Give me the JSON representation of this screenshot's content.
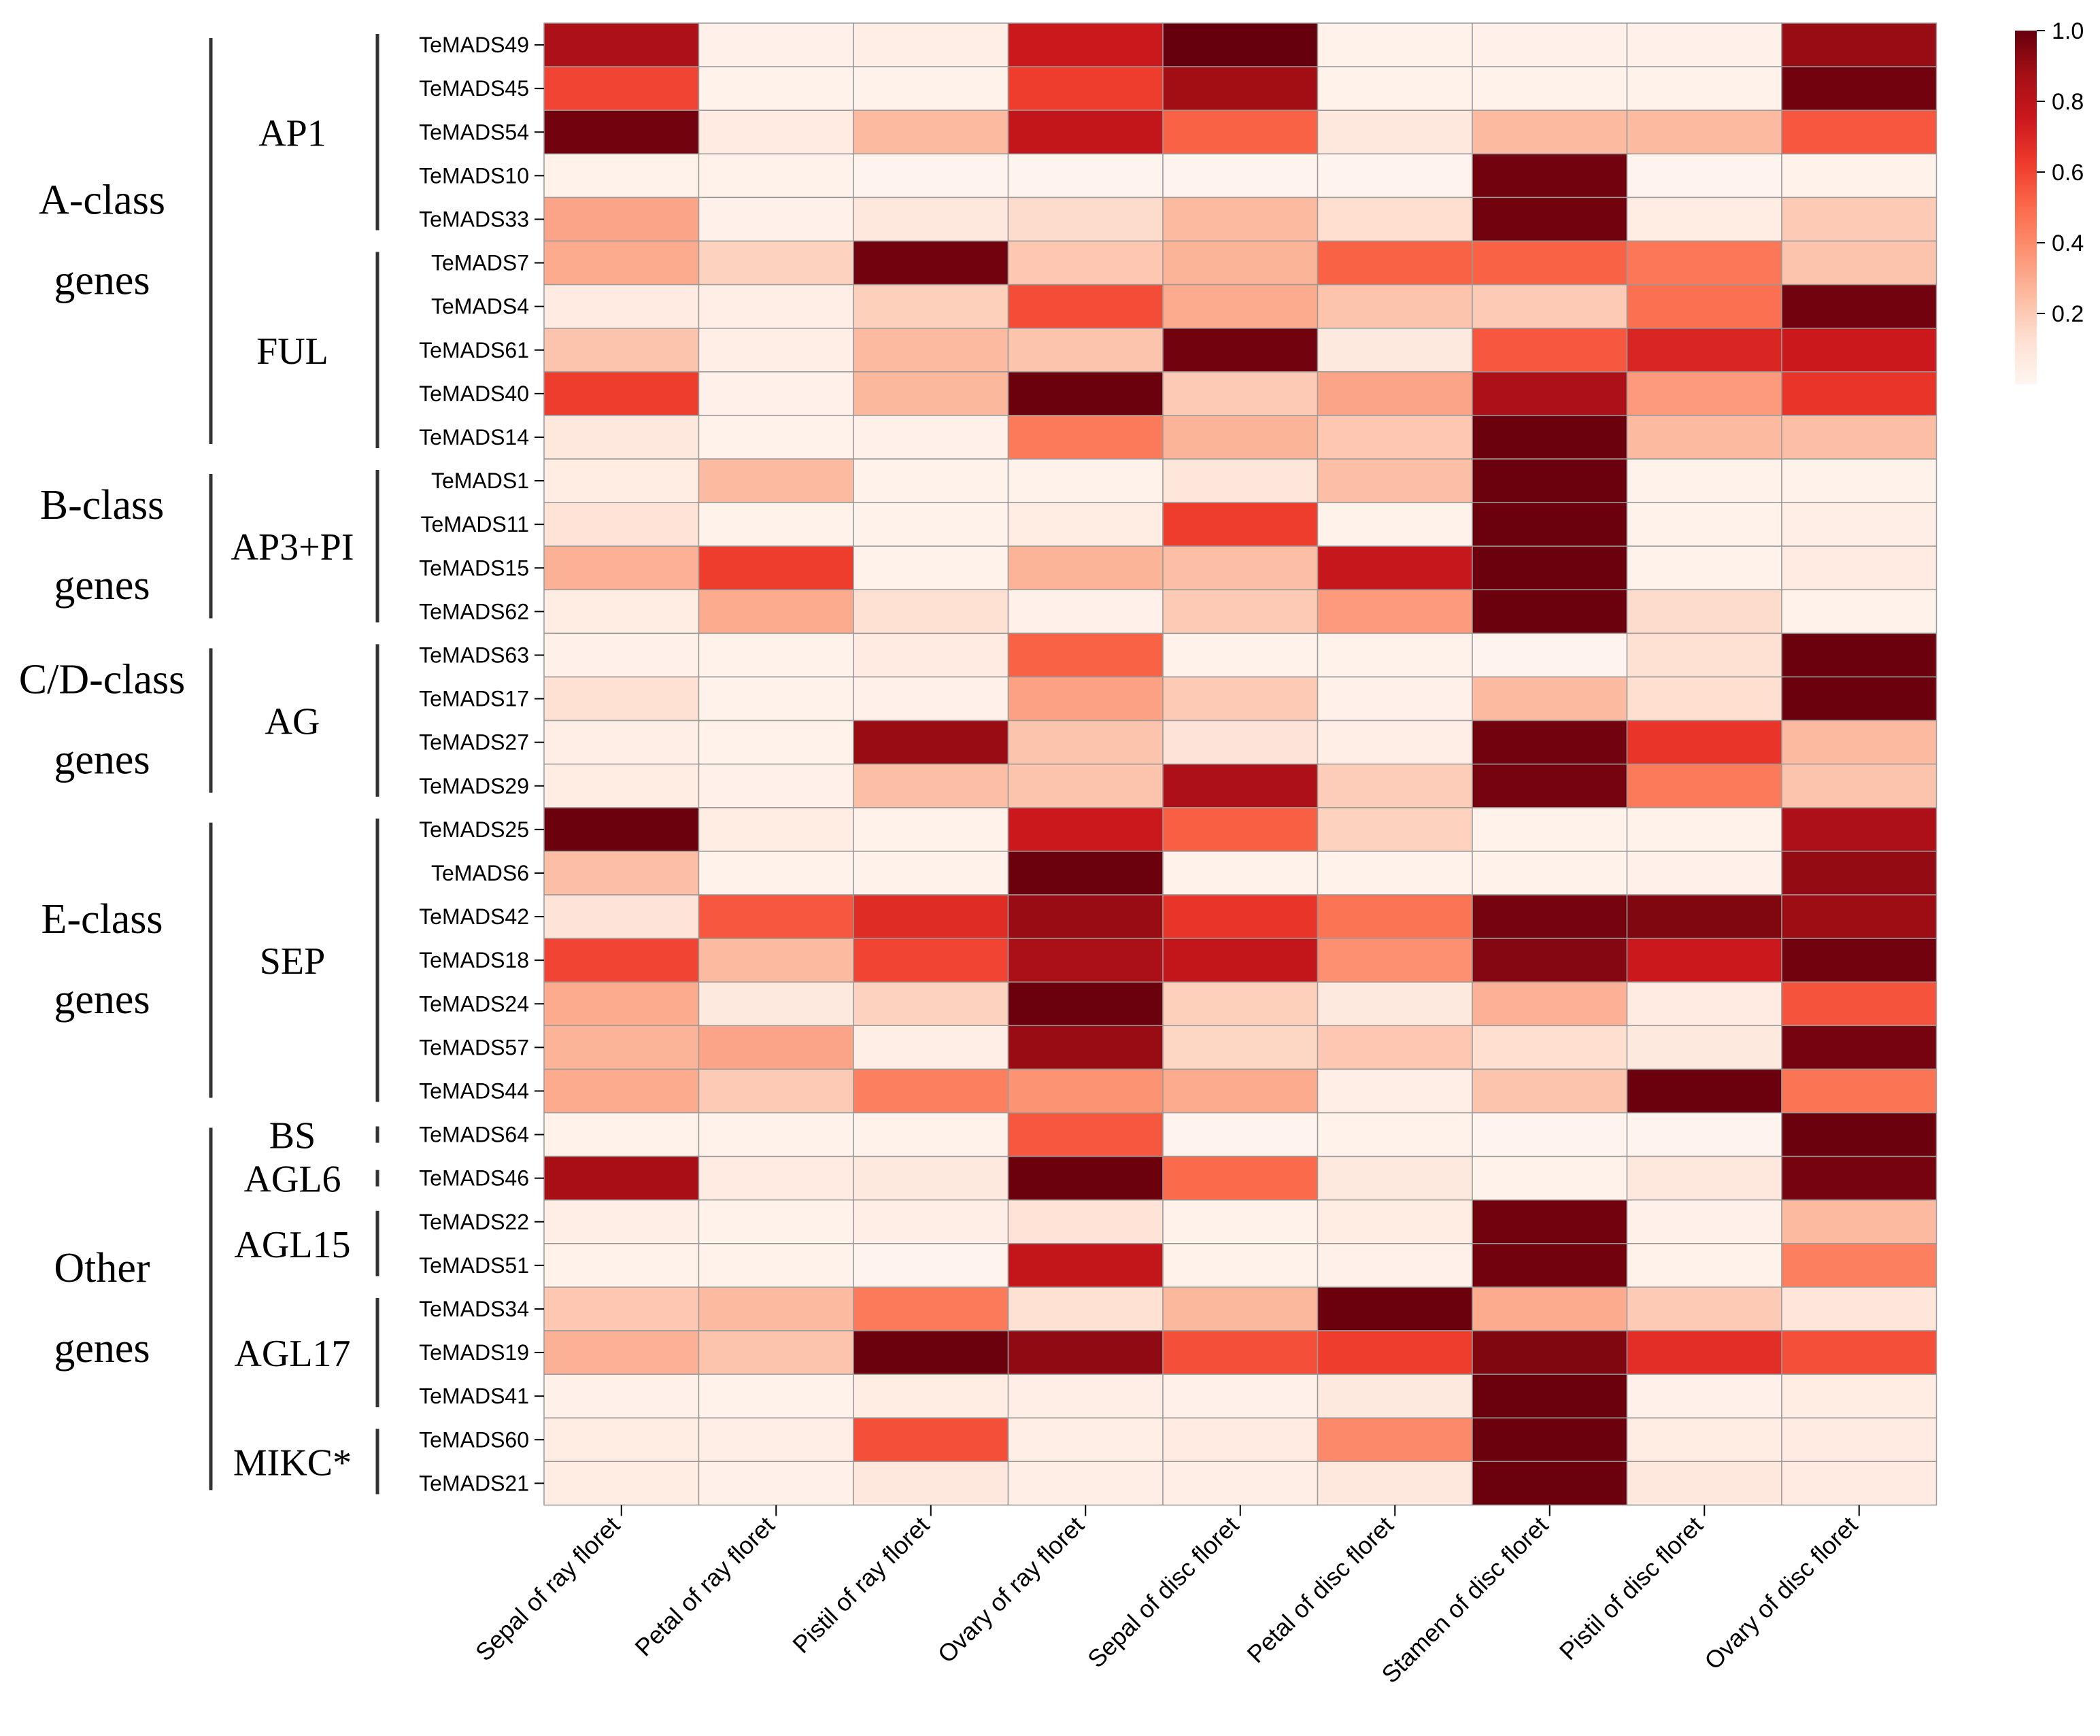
{
  "chart_data": {
    "type": "heatmap",
    "title": "",
    "colormap": "Reds",
    "colors": {
      "low": "#fff5f0",
      "high": "#67000d",
      "grid": "#999999"
    },
    "columns": [
      "Sepal of ray floret",
      "Petal of ray floret",
      "Pistil of ray floret",
      "Ovary of ray floret",
      "Sepal of disc floret",
      "Petal of disc floret",
      "Stamen of disc floret",
      "Pistil of disc floret",
      "Ovary of disc floret"
    ],
    "rows": [
      "TeMADS49",
      "TeMADS45",
      "TeMADS54",
      "TeMADS10",
      "TeMADS33",
      "TeMADS7",
      "TeMADS4",
      "TeMADS61",
      "TeMADS40",
      "TeMADS14",
      "TeMADS1",
      "TeMADS11",
      "TeMADS15",
      "TeMADS62",
      "TeMADS63",
      "TeMADS17",
      "TeMADS27",
      "TeMADS29",
      "TeMADS25",
      "TeMADS6",
      "TeMADS42",
      "TeMADS18",
      "TeMADS24",
      "TeMADS57",
      "TeMADS44",
      "TeMADS64",
      "TeMADS46",
      "TeMADS22",
      "TeMADS51",
      "TeMADS34",
      "TeMADS19",
      "TeMADS41",
      "TeMADS60",
      "TeMADS21"
    ],
    "values": [
      [
        0.85,
        0.03,
        0.04,
        0.75,
        1.0,
        0.02,
        0.03,
        0.03,
        0.9
      ],
      [
        0.6,
        0.02,
        0.02,
        0.62,
        0.88,
        0.02,
        0.02,
        0.02,
        0.98
      ],
      [
        0.98,
        0.06,
        0.25,
        0.78,
        0.52,
        0.08,
        0.25,
        0.25,
        0.55
      ],
      [
        0.02,
        0.02,
        0.01,
        0.01,
        0.01,
        0.01,
        0.98,
        0.01,
        0.02
      ],
      [
        0.32,
        0.03,
        0.08,
        0.14,
        0.25,
        0.13,
        0.98,
        0.05,
        0.2
      ],
      [
        0.3,
        0.17,
        0.98,
        0.21,
        0.27,
        0.52,
        0.52,
        0.46,
        0.22
      ],
      [
        0.06,
        0.04,
        0.18,
        0.58,
        0.3,
        0.22,
        0.2,
        0.48,
        0.98
      ],
      [
        0.22,
        0.04,
        0.25,
        0.22,
        0.98,
        0.07,
        0.55,
        0.7,
        0.75
      ],
      [
        0.62,
        0.03,
        0.26,
        0.99,
        0.2,
        0.32,
        0.85,
        0.35,
        0.65
      ],
      [
        0.08,
        0.02,
        0.03,
        0.45,
        0.27,
        0.21,
        0.99,
        0.25,
        0.24
      ],
      [
        0.05,
        0.25,
        0.02,
        0.02,
        0.09,
        0.24,
        0.99,
        0.02,
        0.02
      ],
      [
        0.11,
        0.02,
        0.02,
        0.05,
        0.62,
        0.02,
        0.99,
        0.02,
        0.04
      ],
      [
        0.28,
        0.62,
        0.02,
        0.27,
        0.24,
        0.77,
        0.99,
        0.02,
        0.06
      ],
      [
        0.05,
        0.3,
        0.12,
        0.03,
        0.2,
        0.35,
        0.99,
        0.14,
        0.02
      ],
      [
        0.03,
        0.02,
        0.06,
        0.52,
        0.02,
        0.02,
        0.01,
        0.12,
        0.99
      ],
      [
        0.12,
        0.02,
        0.03,
        0.33,
        0.2,
        0.03,
        0.25,
        0.13,
        0.99
      ],
      [
        0.04,
        0.02,
        0.9,
        0.22,
        0.1,
        0.04,
        0.98,
        0.65,
        0.25
      ],
      [
        0.05,
        0.03,
        0.24,
        0.22,
        0.85,
        0.19,
        0.97,
        0.45,
        0.22
      ],
      [
        0.99,
        0.05,
        0.02,
        0.75,
        0.53,
        0.17,
        0.02,
        0.02,
        0.85
      ],
      [
        0.24,
        0.02,
        0.02,
        0.99,
        0.02,
        0.02,
        0.02,
        0.03,
        0.91
      ],
      [
        0.1,
        0.55,
        0.68,
        0.9,
        0.65,
        0.47,
        0.97,
        0.95,
        0.89
      ],
      [
        0.6,
        0.25,
        0.6,
        0.86,
        0.78,
        0.38,
        0.94,
        0.75,
        0.98
      ],
      [
        0.3,
        0.07,
        0.17,
        0.99,
        0.18,
        0.07,
        0.28,
        0.06,
        0.56
      ],
      [
        0.27,
        0.32,
        0.04,
        0.9,
        0.16,
        0.21,
        0.13,
        0.07,
        0.97
      ],
      [
        0.3,
        0.2,
        0.43,
        0.37,
        0.3,
        0.04,
        0.22,
        0.99,
        0.47
      ],
      [
        0.02,
        0.02,
        0.02,
        0.55,
        0.01,
        0.02,
        0.01,
        0.01,
        0.99
      ],
      [
        0.87,
        0.06,
        0.07,
        0.99,
        0.5,
        0.07,
        0.02,
        0.08,
        0.97
      ],
      [
        0.04,
        0.02,
        0.04,
        0.11,
        0.02,
        0.05,
        0.98,
        0.03,
        0.25
      ],
      [
        0.02,
        0.02,
        0.01,
        0.78,
        0.02,
        0.03,
        0.98,
        0.02,
        0.43
      ],
      [
        0.21,
        0.25,
        0.45,
        0.12,
        0.26,
        0.99,
        0.3,
        0.2,
        0.09
      ],
      [
        0.28,
        0.22,
        0.99,
        0.92,
        0.57,
        0.62,
        0.95,
        0.67,
        0.57
      ],
      [
        0.03,
        0.02,
        0.05,
        0.04,
        0.03,
        0.07,
        0.99,
        0.03,
        0.05
      ],
      [
        0.05,
        0.04,
        0.57,
        0.04,
        0.06,
        0.4,
        0.99,
        0.05,
        0.06
      ],
      [
        0.05,
        0.03,
        0.08,
        0.04,
        0.04,
        0.08,
        0.99,
        0.08,
        0.06
      ]
    ],
    "colorbar": {
      "min": 0,
      "max": 1,
      "ticks": [
        "0.2",
        "0.4",
        "0.6",
        "0.8",
        "1.0"
      ]
    },
    "groups": [
      {
        "lines": [
          "A-class",
          "genes"
        ],
        "start": 0,
        "end": 9
      },
      {
        "lines": [
          "B-class",
          "genes"
        ],
        "start": 10,
        "end": 13
      },
      {
        "lines": [
          "C/D-class",
          "genes"
        ],
        "start": 14,
        "end": 17
      },
      {
        "lines": [
          "E-class",
          "genes"
        ],
        "start": 18,
        "end": 24
      },
      {
        "lines": [
          "Other",
          "genes"
        ],
        "start": 25,
        "end": 33
      }
    ],
    "subgroups": [
      {
        "name": "AP1",
        "start": 0,
        "end": 4
      },
      {
        "name": "FUL",
        "start": 5,
        "end": 9
      },
      {
        "name": "AP3+PI",
        "start": 10,
        "end": 13
      },
      {
        "name": "AG",
        "start": 14,
        "end": 17
      },
      {
        "name": "SEP",
        "start": 18,
        "end": 24
      },
      {
        "name": "BS",
        "start": 25,
        "end": 25
      },
      {
        "name": "AGL6",
        "start": 26,
        "end": 26
      },
      {
        "name": "AGL15",
        "start": 27,
        "end": 28
      },
      {
        "name": "AGL17",
        "start": 29,
        "end": 31
      },
      {
        "name": "MIKC*",
        "start": 32,
        "end": 33
      }
    ]
  }
}
